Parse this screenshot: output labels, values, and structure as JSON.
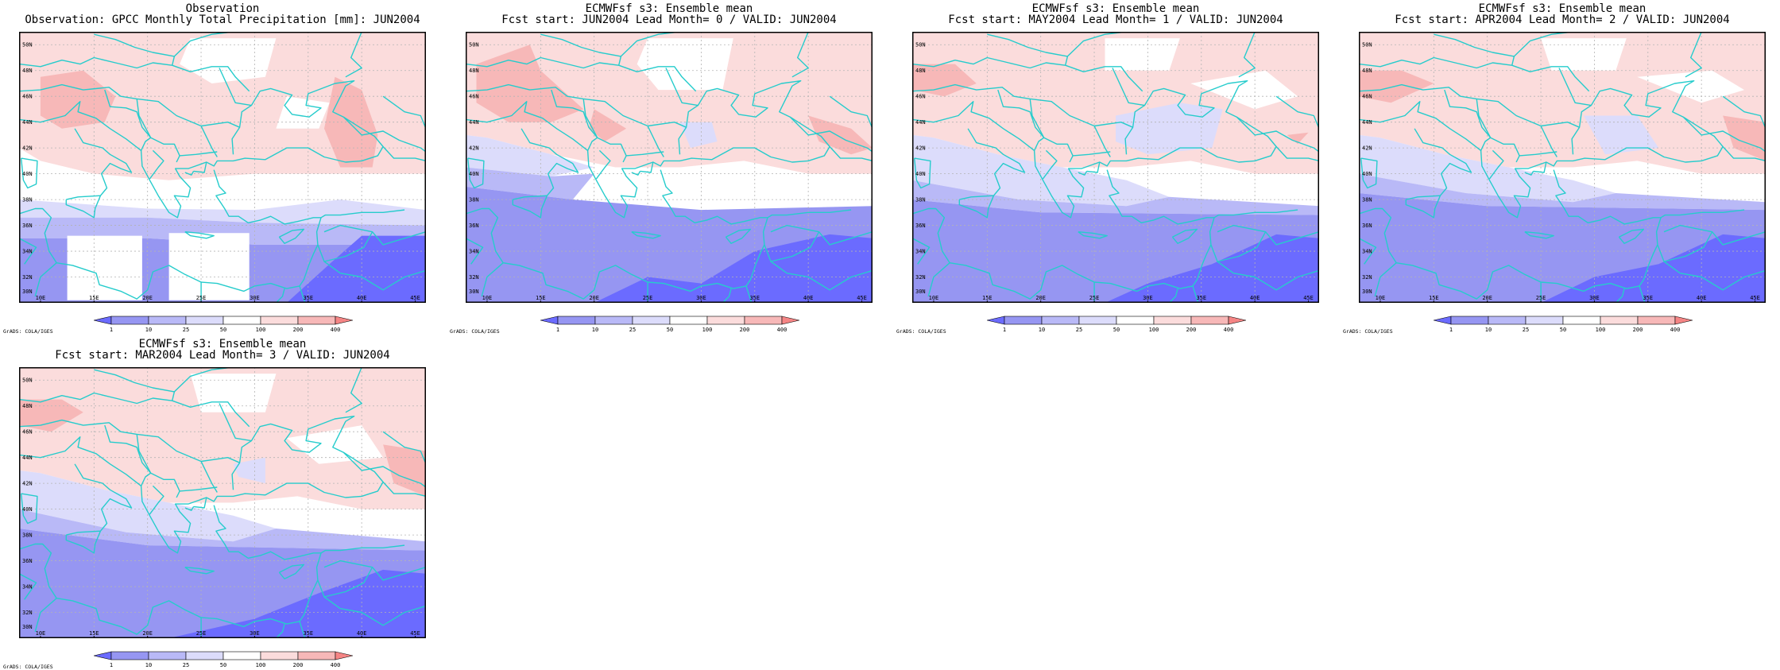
{
  "colors": {
    "land_boundary": "#26cccc",
    "b_lt_1": "#6b6bff",
    "b_1_10": "#9696f2",
    "b_10_25": "#b9b9f7",
    "b_25_50": "#dcdcfb",
    "b_50_100": "#ffffff",
    "b_100_200": "#fbdcdc",
    "b_200_400": "#f7b8b8",
    "b_gt_400": "#f58585"
  },
  "axes": {
    "x_ticks": [
      "10E",
      "15E",
      "20E",
      "25E",
      "30E",
      "35E",
      "40E",
      "45E"
    ],
    "y_ticks": [
      "50N",
      "48N",
      "46N",
      "44N",
      "42N",
      "40N",
      "38N",
      "36N",
      "34N",
      "32N",
      "30N"
    ],
    "lon_range": [
      8,
      46
    ],
    "lat_range": [
      30,
      51
    ]
  },
  "colorbar": {
    "labels": [
      "1",
      "10",
      "25",
      "50",
      "100",
      "200",
      "400"
    ],
    "colors": [
      "#6b6bff",
      "#9696f2",
      "#b9b9f7",
      "#dcdcfb",
      "#ffffff",
      "#fbdcdc",
      "#f7b8b8",
      "#f58585"
    ]
  },
  "credit": "GrADS: COLA/IGES",
  "panels": [
    {
      "title1": "Observation",
      "title2": "Observation: GPCC Monthly Total Precipitation [mm]: JUN2004",
      "kind": "obs"
    },
    {
      "title1": "ECMWFsf s3: Ensemble mean",
      "title2": "Fcst start: JUN2004  Lead Month= 0 / VALID: JUN2004",
      "kind": "lead0"
    },
    {
      "title1": "ECMWFsf s3: Ensemble mean",
      "title2": "Fcst start: MAY2004  Lead Month= 1 / VALID: JUN2004",
      "kind": "lead1"
    },
    {
      "title1": "ECMWFsf s3: Ensemble mean",
      "title2": "Fcst start: APR2004  Lead Month= 2 / VALID: JUN2004",
      "kind": "lead2"
    },
    {
      "title1": "ECMWFsf s3: Ensemble mean",
      "title2": "Fcst start: MAR2004  Lead Month= 3 / VALID: JUN2004",
      "kind": "lead3"
    }
  ]
}
